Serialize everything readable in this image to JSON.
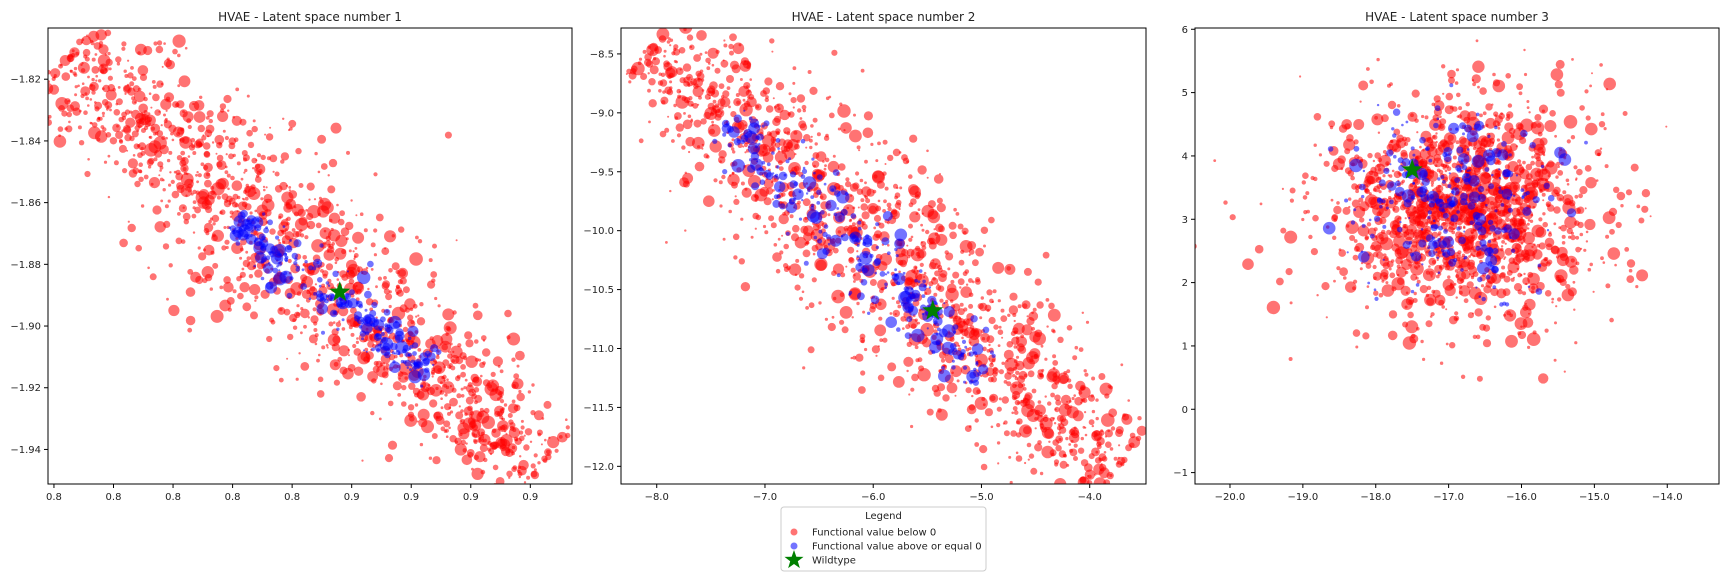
{
  "chart_data": [
    {
      "type": "scatter",
      "title": "HVAE - Latent space number 1",
      "xlabel": "",
      "ylabel": "",
      "xlim": [
        0.7885,
        0.9205
      ],
      "ylim": [
        -1.9512,
        -1.8034
      ],
      "xtick_values": [
        0.79,
        0.805,
        0.82,
        0.835,
        0.85,
        0.865,
        0.88,
        0.895,
        0.91
      ],
      "xtick_labels": [
        "0.8",
        "0.8",
        "0.8",
        "0.8",
        "0.8",
        "0.9",
        "0.9",
        "0.9",
        "0.9"
      ],
      "yticks": [
        -1.82,
        -1.84,
        -1.86,
        -1.88,
        -1.9,
        -1.92,
        -1.94
      ],
      "ytick_labels": [
        "−1.82",
        "−1.84",
        "−1.86",
        "−1.88",
        "−1.90",
        "−1.92",
        "−1.94"
      ],
      "series": [
        {
          "name": "Functional value below 0",
          "color": "#ff0000",
          "marker": "circle",
          "alpha": 0.55,
          "cloud": {
            "start": [
              0.794,
              -1.813
            ],
            "end": [
              0.912,
              -1.945
            ],
            "count": 1400,
            "spread": 0.22
          }
        },
        {
          "name": "Functional value above or equal 0",
          "color": "#0000ff",
          "marker": "circle",
          "alpha": 0.55,
          "cloud": {
            "start": [
              0.835,
              -1.865
            ],
            "end": [
              0.885,
              -1.915
            ],
            "count": 240,
            "spread": 0.18
          }
        }
      ],
      "wildtype": {
        "x": 0.862,
        "y": -1.889,
        "color": "#008000"
      }
    },
    {
      "type": "scatter",
      "title": "HVAE - Latent space number 2",
      "xlabel": "",
      "ylabel": "",
      "xlim": [
        -8.33,
        -3.48
      ],
      "ylim": [
        -12.15,
        -8.28
      ],
      "xticks": [
        -8.0,
        -7.0,
        -6.0,
        -5.0,
        -4.0
      ],
      "xtick_labels": [
        "−8.0",
        "−7.0",
        "−6.0",
        "−5.0",
        "−4.0"
      ],
      "yticks": [
        -8.5,
        -9.0,
        -9.5,
        -10.0,
        -10.5,
        -11.0,
        -11.5,
        -12.0
      ],
      "ytick_labels": [
        "−8.5",
        "−9.0",
        "−9.5",
        "−10.0",
        "−10.5",
        "−11.0",
        "−11.5",
        "−12.0"
      ],
      "series": [
        {
          "name": "Functional value below 0",
          "color": "#ff0000",
          "marker": "circle",
          "alpha": 0.55,
          "cloud": {
            "start": [
              -8.05,
              -8.45
            ],
            "end": [
              -3.75,
              -12.0
            ],
            "count": 1400,
            "spread": 0.22
          }
        },
        {
          "name": "Functional value above or equal 0",
          "color": "#0000ff",
          "marker": "circle",
          "alpha": 0.55,
          "cloud": {
            "start": [
              -7.3,
              -9.1
            ],
            "end": [
              -5.0,
              -11.2
            ],
            "count": 260,
            "spread": 0.18
          }
        }
      ],
      "wildtype": {
        "x": -5.45,
        "y": -10.68,
        "color": "#008000"
      }
    },
    {
      "type": "scatter",
      "title": "HVAE - Latent space number 3",
      "xlabel": "",
      "ylabel": "",
      "xlim": [
        -20.48,
        -13.29
      ],
      "ylim": [
        -1.18,
        6.02
      ],
      "xticks": [
        -20.0,
        -19.0,
        -18.0,
        -17.0,
        -16.0,
        -15.0,
        -14.0
      ],
      "xtick_labels": [
        "−20.0",
        "−19.0",
        "−18.0",
        "−17.0",
        "−16.0",
        "−15.0",
        "−14.0"
      ],
      "yticks": [
        6,
        5,
        4,
        3,
        2,
        1,
        0,
        -1
      ],
      "ytick_labels": [
        "6",
        "5",
        "4",
        "3",
        "2",
        "1",
        "0",
        "−1"
      ],
      "series": [
        {
          "name": "Functional value below 0",
          "color": "#ff0000",
          "marker": "circle",
          "alpha": 0.55,
          "blob": {
            "center": [
              -16.8,
              3.2
            ],
            "radius": [
              1.55,
              1.45
            ],
            "count": 1500
          }
        },
        {
          "name": "Functional value above or equal 0",
          "color": "#0000ff",
          "marker": "circle",
          "alpha": 0.55,
          "blob": {
            "center": [
              -16.9,
              3.3
            ],
            "radius": [
              1.1,
              1.1
            ],
            "count": 260
          }
        }
      ],
      "wildtype": {
        "x": -17.5,
        "y": 3.78,
        "color": "#008000"
      }
    }
  ],
  "legend": {
    "title": "Legend",
    "placement": "bottom-center",
    "entries": [
      {
        "label": "Functional value below 0",
        "color": "#ff0000",
        "marker": "circle"
      },
      {
        "label": "Functional value above or equal 0",
        "color": "#0000ff",
        "marker": "circle"
      },
      {
        "label": "Wildtype",
        "color": "#008000",
        "marker": "star"
      }
    ]
  }
}
